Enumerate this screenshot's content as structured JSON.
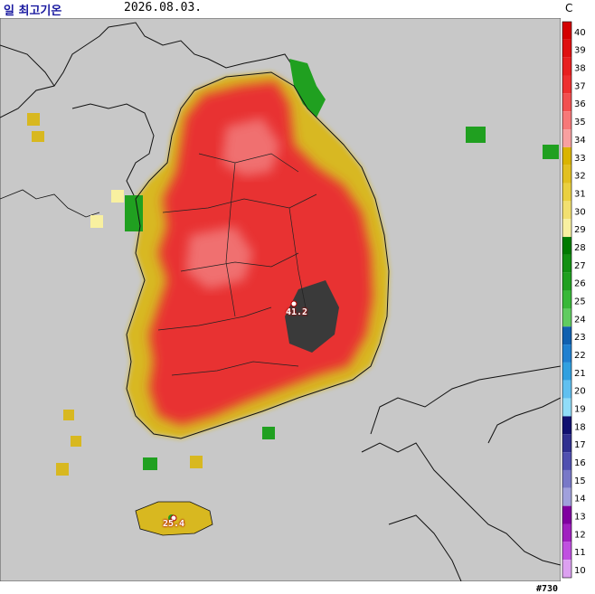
{
  "header": {
    "title": "일 최고기온",
    "date": "2026.08.03.",
    "unit": "C"
  },
  "stations": {
    "max_value": "41.2",
    "jeju_value": "25.4"
  },
  "site_id": "#730",
  "legend": {
    "ticks": [
      "40",
      "39",
      "38",
      "37",
      "36",
      "35",
      "34",
      "33",
      "32",
      "31",
      "30",
      "29",
      "28",
      "27",
      "26",
      "25",
      "24",
      "23",
      "22",
      "21",
      "20",
      "19",
      "18",
      "17",
      "16",
      "15",
      "14",
      "13",
      "12",
      "11",
      "10"
    ],
    "colors": [
      "#d40000",
      "#e01010",
      "#e82020",
      "#ee3030",
      "#f25050",
      "#f77878",
      "#f8a0a0",
      "#dab400",
      "#e2c020",
      "#ead040",
      "#f2e070",
      "#f8f0a0",
      "#007a00",
      "#129012",
      "#20a020",
      "#38b838",
      "#60cc60",
      "#1060b0",
      "#2080d0",
      "#30a0e0",
      "#60c0f0",
      "#90dcf8",
      "#101070",
      "#303090",
      "#5050b0",
      "#7878c8",
      "#a0a0dc",
      "#8000a0",
      "#a020c0",
      "#c050e0",
      "#dca0f0"
    ]
  },
  "colors": {
    "ocean": "#c8c8c8",
    "hot": "#e83030",
    "extreme": "#3a3a3a",
    "warm": "#d8b820",
    "green": "#20a020"
  }
}
